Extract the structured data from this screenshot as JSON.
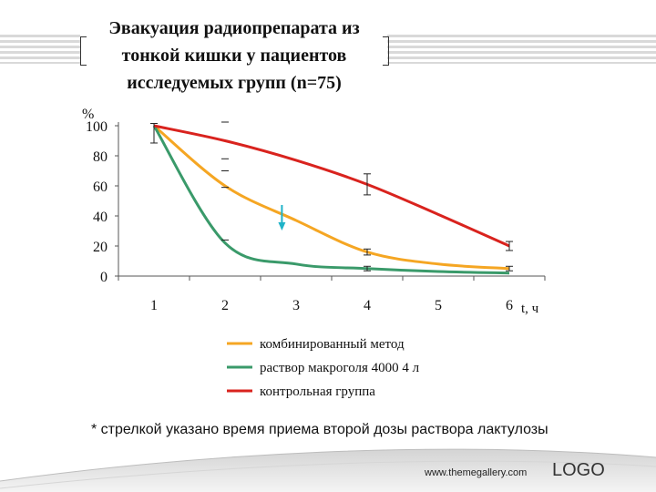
{
  "header": {
    "title_lines": [
      "Эвакуация радиопрепарата из",
      "тонкой кишки у пациентов",
      "исследуемых групп (n=75)"
    ]
  },
  "chart_data": {
    "type": "line",
    "ylabel": "%",
    "xlabel": "t, ч",
    "x": [
      1,
      2,
      3,
      4,
      5,
      6
    ],
    "xlim": [
      0.5,
      6.5
    ],
    "ylim": [
      0,
      100
    ],
    "yticks": [
      0,
      20,
      40,
      60,
      80,
      100
    ],
    "xticks": [
      "1",
      "2",
      "3",
      "4",
      "5",
      "6"
    ],
    "grid": false,
    "legend_position": "bottom",
    "series": [
      {
        "name": "комбинированный метод",
        "color": "#f5a623",
        "values": [
          100,
          60,
          37,
          16,
          8,
          5
        ]
      },
      {
        "name": "раствор макроголя 4000 4 л",
        "color": "#3a9a6a",
        "values": [
          100,
          22,
          8,
          5,
          3,
          2
        ]
      },
      {
        "name": "контрольная группа",
        "color": "#d9231e",
        "values": [
          100,
          90,
          77,
          61,
          41,
          20
        ]
      }
    ],
    "annotations": [
      {
        "type": "arrow",
        "x": 2.8,
        "color": "#1fb3c8"
      }
    ]
  },
  "footnote": "* стрелкой указано время приема второй дозы раствора лактулозы",
  "footer": {
    "url": "www.themegallery.com",
    "logo": "LOGO"
  }
}
